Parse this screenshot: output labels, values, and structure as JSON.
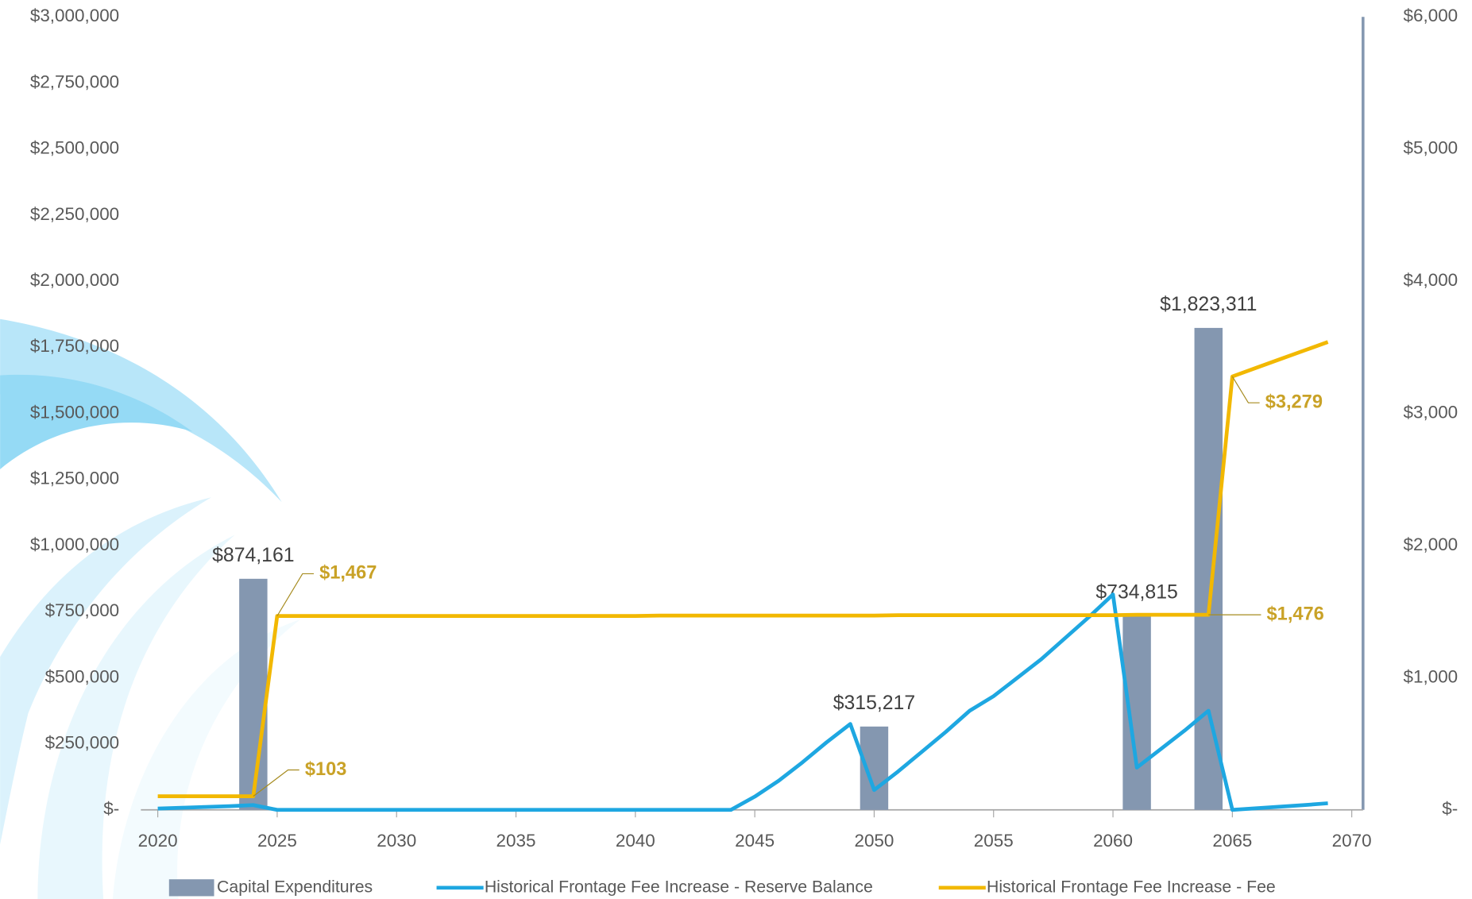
{
  "chart_data": {
    "type": "combo",
    "xlim": [
      2020,
      2070
    ],
    "xticks": [
      2020,
      2025,
      2030,
      2035,
      2040,
      2045,
      2050,
      2055,
      2060,
      2065,
      2070
    ],
    "ylim": [
      0,
      3000000
    ],
    "yticks": [
      {
        "value": 0,
        "label": "$-"
      },
      {
        "value": 250000,
        "label": "$250,000"
      },
      {
        "value": 500000,
        "label": "$500,000"
      },
      {
        "value": 750000,
        "label": "$750,000"
      },
      {
        "value": 1000000,
        "label": "$1,000,000"
      },
      {
        "value": 1250000,
        "label": "$1,250,000"
      },
      {
        "value": 1500000,
        "label": "$1,500,000"
      },
      {
        "value": 1750000,
        "label": "$1,750,000"
      },
      {
        "value": 2000000,
        "label": "$2,000,000"
      },
      {
        "value": 2250000,
        "label": "$2,250,000"
      },
      {
        "value": 2500000,
        "label": "$2,500,000"
      },
      {
        "value": 2750000,
        "label": "$2,750,000"
      },
      {
        "value": 3000000,
        "label": "$3,000,000"
      }
    ],
    "y2lim": [
      0,
      6000
    ],
    "y2ticks": [
      {
        "value": 0,
        "label": "$-"
      },
      {
        "value": 1000,
        "label": "$1,000"
      },
      {
        "value": 2000,
        "label": "$2,000"
      },
      {
        "value": 3000,
        "label": "$3,000"
      },
      {
        "value": 4000,
        "label": "$4,000"
      },
      {
        "value": 5000,
        "label": "$5,000"
      },
      {
        "value": 6000,
        "label": "$6,000"
      }
    ],
    "legend": "bottom",
    "series": [
      {
        "name": "Capital Expenditures",
        "kind": "bar",
        "color": "#8497b0",
        "label_color": "#404040",
        "x": [
          2024,
          2050,
          2061,
          2064
        ],
        "values": [
          874161,
          315217,
          734815,
          1823311
        ],
        "value_labels": [
          "$874,161",
          "$315,217",
          "$734,815",
          "$1,823,311"
        ]
      },
      {
        "name": "Historical Frontage Fee Increase - Reserve Balance",
        "kind": "line",
        "color": "#1ea7e1",
        "x": [
          2020,
          2021,
          2022,
          2023,
          2024,
          2025,
          2026,
          2027,
          2028,
          2029,
          2030,
          2031,
          2032,
          2033,
          2034,
          2035,
          2036,
          2037,
          2038,
          2039,
          2040,
          2041,
          2042,
          2043,
          2044,
          2045,
          2046,
          2047,
          2048,
          2049,
          2050,
          2051,
          2052,
          2053,
          2054,
          2055,
          2056,
          2057,
          2058,
          2059,
          2060,
          2061,
          2062,
          2063,
          2064,
          2065,
          2066,
          2067,
          2068,
          2069
        ],
        "values": [
          5000,
          8000,
          11000,
          14000,
          18000,
          0,
          0,
          0,
          0,
          0,
          0,
          0,
          0,
          0,
          0,
          0,
          0,
          0,
          0,
          0,
          0,
          0,
          0,
          0,
          0,
          50000,
          110000,
          180000,
          255000,
          325000,
          75000,
          145000,
          220000,
          295000,
          375000,
          430000,
          500000,
          570000,
          650000,
          730000,
          815000,
          160000,
          230000,
          300000,
          375000,
          0,
          6000,
          12000,
          18000,
          25000
        ]
      },
      {
        "name": "Historical Frontage Fee Increase - Fee",
        "kind": "line",
        "axis": "y2",
        "color": "#f2b800",
        "label_color": "#c9a227",
        "x": [
          2020,
          2021,
          2022,
          2023,
          2024,
          2025,
          2026,
          2027,
          2028,
          2029,
          2030,
          2031,
          2032,
          2033,
          2034,
          2035,
          2036,
          2037,
          2038,
          2039,
          2040,
          2041,
          2042,
          2043,
          2044,
          2045,
          2046,
          2047,
          2048,
          2049,
          2050,
          2051,
          2052,
          2053,
          2054,
          2055,
          2056,
          2057,
          2058,
          2059,
          2060,
          2061,
          2062,
          2063,
          2064,
          2065,
          2066,
          2067,
          2068,
          2069
        ],
        "values": [
          103,
          103,
          103,
          103,
          103,
          1467,
          1467,
          1467,
          1467,
          1467,
          1467,
          1467,
          1467,
          1467,
          1467,
          1467,
          1467,
          1467,
          1467,
          1467,
          1467,
          1470,
          1470,
          1470,
          1470,
          1470,
          1470,
          1470,
          1470,
          1470,
          1470,
          1473,
          1473,
          1473,
          1473,
          1473,
          1473,
          1473,
          1473,
          1473,
          1473,
          1476,
          1476,
          1476,
          1476,
          3279,
          3345,
          3410,
          3475,
          3540
        ],
        "value_labels": [
          null,
          null,
          null,
          null,
          "$103",
          "$1,467",
          null,
          null,
          null,
          null,
          null,
          null,
          null,
          null,
          null,
          null,
          null,
          null,
          null,
          null,
          null,
          null,
          null,
          null,
          null,
          null,
          null,
          null,
          null,
          null,
          null,
          null,
          null,
          null,
          null,
          null,
          null,
          null,
          null,
          null,
          null,
          null,
          null,
          null,
          "$1,476",
          "$3,279",
          null,
          null,
          null,
          null
        ]
      }
    ]
  }
}
